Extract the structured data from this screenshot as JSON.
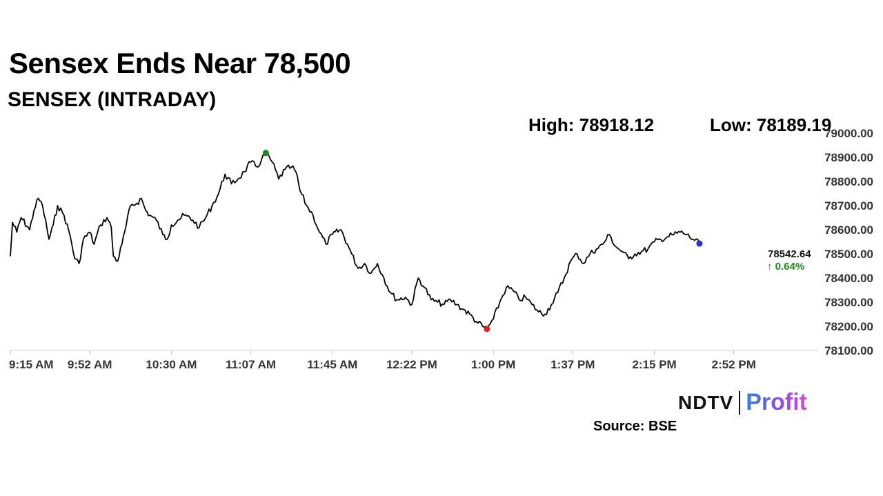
{
  "header": {
    "headline": "Sensex Ends Near 78,500",
    "subtitle": "SENSEX (INTRADAY)",
    "high_label": "High: 78918.12",
    "low_label": "Low: 78189.19"
  },
  "footer": {
    "brand_left": "NDTV",
    "brand_right": "Profit",
    "source": "Source: BSE"
  },
  "chart_data": {
    "type": "line",
    "title": "SENSEX (INTRADAY)",
    "x_ticks": [
      "9:15 AM",
      "9:52 AM",
      "10:30 AM",
      "11:07 AM",
      "11:45 AM",
      "12:22 PM",
      "1:00 PM",
      "1:37 PM",
      "2:15 PM",
      "2:52 PM"
    ],
    "y_ticks": [
      "78100.00",
      "78200.00",
      "78300.00",
      "78400.00",
      "78500.00",
      "78600.00",
      "78700.00",
      "78800.00",
      "78900.00",
      "79000.00"
    ],
    "ylim": [
      78100,
      79000
    ],
    "xlim": [
      "9:15 AM",
      "3:30 PM"
    ],
    "grid": false,
    "series": [
      {
        "name": "SENSEX",
        "color": "#000000",
        "points": [
          [
            "9:15 AM",
            78490
          ],
          [
            "9:16 AM",
            78630
          ],
          [
            "9:18 AM",
            78590
          ],
          [
            "9:20 AM",
            78650
          ],
          [
            "9:24 AM",
            78600
          ],
          [
            "9:26 AM",
            78680
          ],
          [
            "9:28 AM",
            78730
          ],
          [
            "9:30 AM",
            78700
          ],
          [
            "9:33 AM",
            78560
          ],
          [
            "9:35 AM",
            78620
          ],
          [
            "9:37 AM",
            78700
          ],
          [
            "9:40 AM",
            78660
          ],
          [
            "9:43 AM",
            78570
          ],
          [
            "9:45 AM",
            78480
          ],
          [
            "9:47 AM",
            78460
          ],
          [
            "9:49 AM",
            78560
          ],
          [
            "9:52 AM",
            78590
          ],
          [
            "9:54 AM",
            78540
          ],
          [
            "9:57 AM",
            78620
          ],
          [
            "10:00 AM",
            78650
          ],
          [
            "10:02 AM",
            78610
          ],
          [
            "10:03 AM",
            78490
          ],
          [
            "10:05 AM",
            78470
          ],
          [
            "10:07 AM",
            78540
          ],
          [
            "10:09 AM",
            78620
          ],
          [
            "10:11 AM",
            78700
          ],
          [
            "10:14 AM",
            78710
          ],
          [
            "10:16 AM",
            78730
          ],
          [
            "10:18 AM",
            78680
          ],
          [
            "10:20 AM",
            78660
          ],
          [
            "10:23 AM",
            78640
          ],
          [
            "10:26 AM",
            78580
          ],
          [
            "10:28 AM",
            78560
          ],
          [
            "10:30 AM",
            78620
          ],
          [
            "10:33 AM",
            78640
          ],
          [
            "10:36 AM",
            78660
          ],
          [
            "10:40 AM",
            78640
          ],
          [
            "10:43 AM",
            78610
          ],
          [
            "10:46 AM",
            78650
          ],
          [
            "10:49 AM",
            78700
          ],
          [
            "10:52 AM",
            78750
          ],
          [
            "10:55 AM",
            78830
          ],
          [
            "10:58 AM",
            78790
          ],
          [
            "11:01 AM",
            78810
          ],
          [
            "11:04 AM",
            78840
          ],
          [
            "11:07 AM",
            78880
          ],
          [
            "11:10 AM",
            78860
          ],
          [
            "11:12 AM",
            78890
          ],
          [
            "11:14 AM",
            78918.12
          ],
          [
            "11:17 AM",
            78880
          ],
          [
            "11:20 AM",
            78810
          ],
          [
            "11:23 AM",
            78850
          ],
          [
            "11:26 AM",
            78860
          ],
          [
            "11:28 AM",
            78840
          ],
          [
            "11:30 AM",
            78760
          ],
          [
            "11:33 AM",
            78700
          ],
          [
            "11:36 AM",
            78660
          ],
          [
            "11:39 AM",
            78590
          ],
          [
            "11:42 AM",
            78540
          ],
          [
            "11:45 AM",
            78580
          ],
          [
            "11:49 AM",
            78600
          ],
          [
            "11:52 AM",
            78540
          ],
          [
            "11:54 AM",
            78500
          ],
          [
            "11:57 AM",
            78440
          ],
          [
            "12:00 PM",
            78460
          ],
          [
            "12:03 PM",
            78420
          ],
          [
            "12:06 PM",
            78460
          ],
          [
            "12:09 PM",
            78400
          ],
          [
            "12:12 PM",
            78340
          ],
          [
            "12:15 PM",
            78310
          ],
          [
            "12:19 PM",
            78320
          ],
          [
            "12:22 PM",
            78290
          ],
          [
            "12:25 PM",
            78400
          ],
          [
            "12:28 PM",
            78360
          ],
          [
            "12:31 PM",
            78310
          ],
          [
            "12:34 PM",
            78300
          ],
          [
            "12:37 PM",
            78290
          ],
          [
            "12:40 PM",
            78310
          ],
          [
            "12:43 PM",
            78290
          ],
          [
            "12:46 PM",
            78270
          ],
          [
            "12:49 PM",
            78250
          ],
          [
            "12:52 PM",
            78220
          ],
          [
            "12:55 PM",
            78200
          ],
          [
            "12:57 PM",
            78189.19
          ],
          [
            "1:00 PM",
            78230
          ],
          [
            "1:03 PM",
            78300
          ],
          [
            "1:06 PM",
            78360
          ],
          [
            "1:09 PM",
            78350
          ],
          [
            "1:12 PM",
            78310
          ],
          [
            "1:15 PM",
            78320
          ],
          [
            "1:18 PM",
            78290
          ],
          [
            "1:21 PM",
            78260
          ],
          [
            "1:24 PM",
            78250
          ],
          [
            "1:27 PM",
            78290
          ],
          [
            "1:30 PM",
            78340
          ],
          [
            "1:33 PM",
            78400
          ],
          [
            "1:36 PM",
            78470
          ],
          [
            "1:39 PM",
            78500
          ],
          [
            "1:42 PM",
            78460
          ],
          [
            "1:45 PM",
            78500
          ],
          [
            "1:48 PM",
            78520
          ],
          [
            "1:51 PM",
            78540
          ],
          [
            "1:54 PM",
            78580
          ],
          [
            "1:57 PM",
            78530
          ],
          [
            "2:00 PM",
            78510
          ],
          [
            "2:03 PM",
            78480
          ],
          [
            "2:06 PM",
            78500
          ],
          [
            "2:09 PM",
            78510
          ],
          [
            "2:12 PM",
            78520
          ],
          [
            "2:15 PM",
            78550
          ],
          [
            "2:18 PM",
            78560
          ],
          [
            "2:21 PM",
            78570
          ],
          [
            "2:24 PM",
            78580
          ],
          [
            "2:27 PM",
            78590
          ],
          [
            "2:30 PM",
            78580
          ],
          [
            "2:33 PM",
            78560
          ],
          [
            "2:36 PM",
            78542.64
          ]
        ]
      }
    ],
    "markers": [
      {
        "label": "high",
        "value": 78918.12,
        "color": "#1a8a1a"
      },
      {
        "label": "low",
        "value": 78189.19,
        "color": "#e02020"
      },
      {
        "label": "last",
        "value": 78542.64,
        "color": "#2233cc"
      }
    ],
    "last_value": "78542.64",
    "change_pct": "↑ 0.64%",
    "change_color": "#1a8a1a"
  }
}
